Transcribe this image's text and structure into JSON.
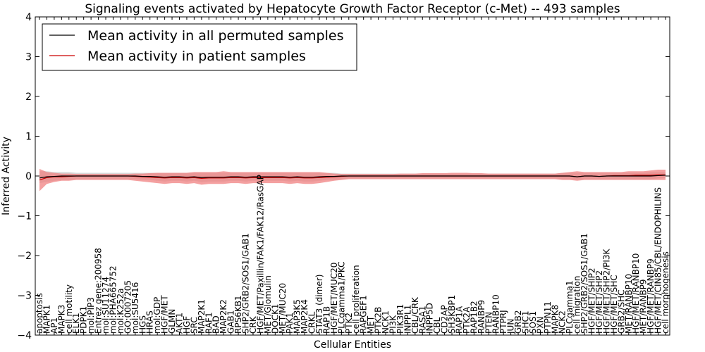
{
  "chart_data": {
    "type": "line",
    "title": "Signaling events activated by Hepatocyte Growth Factor Receptor (c-Met) -- 493 samples",
    "xlabel": "Cellular Entities",
    "ylabel": "Inferred Activity",
    "ylim": [
      -4,
      4
    ],
    "yticks": [
      -4,
      -3,
      -2,
      -1,
      0,
      1,
      2,
      3,
      4
    ],
    "grid": false,
    "legend_position": "top-left",
    "colors": {
      "permuted": "#000000",
      "patient": "#cc0000",
      "patient_band": "#f08080",
      "permuted_band": "#c8c8c8"
    },
    "categories": [
      "apoptosis",
      "MAPK1",
      "AP1",
      "MAPK3",
      "cell motility",
      "ELK1",
      "PDPK1",
      "mol:PIP3",
      "Entrez gene:200958",
      "mol:SU11274",
      "mol:PHA665752",
      "mol:K252a",
      "GO:0007205",
      "mol:SU5416",
      "HGS",
      "HRAS",
      "mol:GDP",
      "HGF/MET",
      "GLMN",
      "AKT1",
      "HGF",
      "SRC",
      "MAP2K1",
      "RAF1",
      "BAD",
      "MAP2K2",
      "GAB1",
      "RPS6KB1",
      "SHP2/GRB2/SOS1/GAB1",
      "CRK",
      "HGF/MET/Paxillin/FAK1/FAK12/RasGAP",
      "MET/Glomulin",
      "DOCK1",
      "MET/MUC20",
      "PAK1",
      "MAP3K5",
      "MAP2K4",
      "CRKL",
      "STAT3 (dimer)",
      "RAP1B",
      "HGF/MET/MUC20",
      "PLCgamma1/PKC",
      "PTK2",
      "cell proliferation",
      "RAPGEF1",
      "MET",
      "PTK2B",
      "NCK1",
      "PI3K",
      "PIK3R1",
      "INPPL1",
      "CBL/CRK",
      "RASA1",
      "INPP5D",
      "CBL",
      "CD2AP",
      "SH3KBP1",
      "RAP1A",
      "PTK2A",
      "RAP1B2",
      "RANBP9",
      "PTEN",
      "RANBP10",
      "PTPRJ",
      "JUN",
      "GRB2",
      "SHC1",
      "SOS1",
      "PXN",
      "PTPN11",
      "MAPK8",
      "NCK2",
      "PLCgamma1",
      "cell migration",
      "SHP2/GRB2/SOS1/GAB1",
      "HGF/MET/SHIP2",
      "HGF/MET/SHP2",
      "HGF/MET/SHP2/PI3K",
      "HGF/MET/SHC",
      "GRB2/SHC",
      "MET/RANBP10",
      "HGF/MET/RANBP10",
      "MET/RANBP9",
      "HGF/MET/RANBP9",
      "HGF/MET/CIN85/CBL/ENDOPHILINS",
      "cell morphogenesis"
    ],
    "series": [
      {
        "name": "Mean activity in all permuted samples",
        "values": [
          -0.05,
          -0.02,
          -0.01,
          0.0,
          0.0,
          0.0,
          0.0,
          0.0,
          0.0,
          0.0,
          0.0,
          0.0,
          0.0,
          0.0,
          -0.01,
          -0.01,
          -0.02,
          -0.03,
          -0.02,
          -0.02,
          -0.03,
          -0.02,
          -0.04,
          -0.03,
          -0.03,
          -0.03,
          -0.02,
          -0.02,
          -0.03,
          -0.02,
          -0.02,
          -0.02,
          -0.02,
          -0.02,
          -0.03,
          -0.02,
          -0.03,
          -0.03,
          -0.02,
          -0.01,
          -0.01,
          0.0,
          0.0,
          0.0,
          0.0,
          0.0,
          0.0,
          0.0,
          0.0,
          0.0,
          0.0,
          0.0,
          0.0,
          0.0,
          0.0,
          0.0,
          0.0,
          0.0,
          0.0,
          0.0,
          0.0,
          0.0,
          0.0,
          0.0,
          0.0,
          0.0,
          0.0,
          0.0,
          0.0,
          0.0,
          0.0,
          0.0,
          0.0,
          -0.02,
          0.0,
          0.0,
          -0.01,
          0.0,
          0.0,
          0.0,
          0.0,
          0.0,
          0.0,
          0.0,
          0.01,
          0.02
        ],
        "lower": [
          -0.18,
          -0.15,
          -0.12,
          -0.1,
          -0.1,
          -0.08,
          -0.08,
          -0.08,
          -0.08,
          -0.08,
          -0.08,
          -0.08,
          -0.08,
          -0.08,
          -0.1,
          -0.1,
          -0.12,
          -0.14,
          -0.12,
          -0.12,
          -0.14,
          -0.12,
          -0.15,
          -0.14,
          -0.14,
          -0.14,
          -0.12,
          -0.12,
          -0.14,
          -0.12,
          -0.12,
          -0.12,
          -0.12,
          -0.12,
          -0.14,
          -0.12,
          -0.14,
          -0.14,
          -0.12,
          -0.1,
          -0.1,
          -0.08,
          -0.06,
          -0.06,
          -0.06,
          -0.06,
          -0.06,
          -0.06,
          -0.06,
          -0.06,
          -0.06,
          -0.06,
          -0.06,
          -0.06,
          -0.06,
          -0.06,
          -0.06,
          -0.06,
          -0.06,
          -0.06,
          -0.06,
          -0.06,
          -0.06,
          -0.06,
          -0.06,
          -0.06,
          -0.06,
          -0.06,
          -0.06,
          -0.06,
          -0.06,
          -0.08,
          -0.08,
          -0.1,
          -0.08,
          -0.08,
          -0.08,
          -0.08,
          -0.08,
          -0.08,
          -0.08,
          -0.08,
          -0.08,
          -0.08,
          -0.06,
          -0.05
        ],
        "upper": [
          0.12,
          0.12,
          0.1,
          0.1,
          0.1,
          0.08,
          0.08,
          0.08,
          0.08,
          0.08,
          0.08,
          0.08,
          0.08,
          0.08,
          0.08,
          0.08,
          0.08,
          0.08,
          0.08,
          0.08,
          0.08,
          0.08,
          0.08,
          0.08,
          0.08,
          0.08,
          0.08,
          0.08,
          0.08,
          0.08,
          0.08,
          0.08,
          0.08,
          0.08,
          0.08,
          0.08,
          0.08,
          0.08,
          0.08,
          0.08,
          0.08,
          0.06,
          0.06,
          0.06,
          0.06,
          0.06,
          0.06,
          0.06,
          0.06,
          0.06,
          0.06,
          0.06,
          0.06,
          0.06,
          0.06,
          0.06,
          0.06,
          0.06,
          0.06,
          0.06,
          0.06,
          0.06,
          0.06,
          0.06,
          0.06,
          0.06,
          0.06,
          0.06,
          0.06,
          0.06,
          0.06,
          0.08,
          0.08,
          0.08,
          0.08,
          0.08,
          0.08,
          0.08,
          0.08,
          0.08,
          0.08,
          0.08,
          0.08,
          0.1,
          0.1,
          0.1
        ]
      },
      {
        "name": "Mean activity in patient samples",
        "values": [
          -0.1,
          -0.04,
          -0.02,
          -0.02,
          -0.01,
          0.0,
          0.0,
          0.0,
          0.0,
          0.0,
          0.0,
          0.0,
          0.0,
          -0.01,
          -0.02,
          -0.03,
          -0.04,
          -0.05,
          -0.04,
          -0.04,
          -0.05,
          -0.04,
          -0.06,
          -0.05,
          -0.05,
          -0.05,
          -0.04,
          -0.04,
          -0.05,
          -0.04,
          -0.04,
          -0.04,
          -0.04,
          -0.04,
          -0.05,
          -0.04,
          -0.05,
          -0.05,
          -0.04,
          -0.03,
          -0.02,
          -0.01,
          0.0,
          0.0,
          0.0,
          0.0,
          0.0,
          0.0,
          0.0,
          0.0,
          0.0,
          0.0,
          0.0,
          0.0,
          0.0,
          0.0,
          0.0,
          0.0,
          0.0,
          0.0,
          0.0,
          0.0,
          0.0,
          0.0,
          0.0,
          0.0,
          0.0,
          0.0,
          0.0,
          0.0,
          0.0,
          0.0,
          0.0,
          -0.02,
          0.0,
          0.0,
          -0.01,
          0.0,
          0.01,
          0.01,
          0.01,
          0.02,
          0.02,
          0.02,
          0.03,
          0.03
        ],
        "lower": [
          -0.38,
          -0.2,
          -0.15,
          -0.12,
          -0.12,
          -0.1,
          -0.1,
          -0.1,
          -0.1,
          -0.1,
          -0.1,
          -0.1,
          -0.1,
          -0.12,
          -0.14,
          -0.16,
          -0.18,
          -0.2,
          -0.18,
          -0.18,
          -0.2,
          -0.18,
          -0.22,
          -0.2,
          -0.2,
          -0.2,
          -0.18,
          -0.18,
          -0.2,
          -0.18,
          -0.18,
          -0.18,
          -0.18,
          -0.18,
          -0.2,
          -0.18,
          -0.2,
          -0.2,
          -0.18,
          -0.15,
          -0.12,
          -0.1,
          -0.08,
          -0.08,
          -0.08,
          -0.08,
          -0.08,
          -0.08,
          -0.08,
          -0.08,
          -0.08,
          -0.08,
          -0.08,
          -0.08,
          -0.08,
          -0.08,
          -0.08,
          -0.08,
          -0.08,
          -0.08,
          -0.08,
          -0.08,
          -0.08,
          -0.08,
          -0.08,
          -0.08,
          -0.08,
          -0.08,
          -0.08,
          -0.08,
          -0.08,
          -0.1,
          -0.1,
          -0.12,
          -0.1,
          -0.1,
          -0.1,
          -0.1,
          -0.1,
          -0.1,
          -0.1,
          -0.1,
          -0.1,
          -0.1,
          -0.1,
          -0.1
        ],
        "upper": [
          0.18,
          0.1,
          0.08,
          0.06,
          0.06,
          0.05,
          0.05,
          0.05,
          0.05,
          0.05,
          0.05,
          0.05,
          0.05,
          0.06,
          0.06,
          0.07,
          0.08,
          0.08,
          0.08,
          0.08,
          0.08,
          0.1,
          0.1,
          0.1,
          0.1,
          0.12,
          0.1,
          0.1,
          0.1,
          0.1,
          0.1,
          0.1,
          0.1,
          0.1,
          0.1,
          0.1,
          0.1,
          0.1,
          0.1,
          0.08,
          0.06,
          0.05,
          0.05,
          0.05,
          0.05,
          0.05,
          0.05,
          0.05,
          0.05,
          0.06,
          0.06,
          0.06,
          0.07,
          0.07,
          0.07,
          0.07,
          0.08,
          0.08,
          0.08,
          0.07,
          0.07,
          0.06,
          0.06,
          0.06,
          0.06,
          0.06,
          0.06,
          0.06,
          0.06,
          0.06,
          0.06,
          0.08,
          0.1,
          0.12,
          0.1,
          0.1,
          0.1,
          0.1,
          0.1,
          0.1,
          0.12,
          0.12,
          0.12,
          0.14,
          0.16,
          0.16
        ]
      }
    ]
  }
}
